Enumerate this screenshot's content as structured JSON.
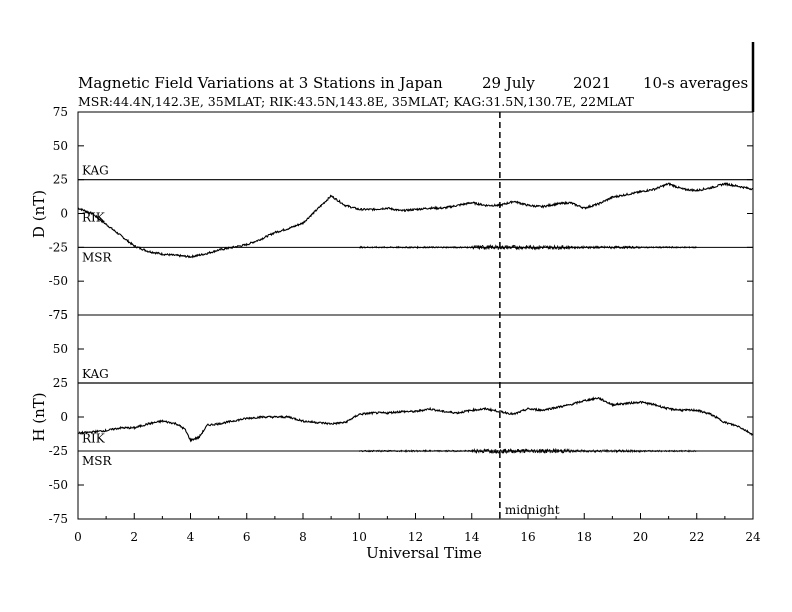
{
  "header": {
    "title": "Magnetic Field Variations at 3 Stations in Japan",
    "date": "29 July",
    "year": "2021",
    "averaging": "10-s averages",
    "stations_line": "MSR:44.4N,142.3E, 35MLAT;  RIK:43.5N,143.8E, 35MLAT;  KAG:31.5N,130.7E, 22MLAT"
  },
  "chart_data": {
    "type": "line",
    "xlabel": "Universal Time",
    "xlim": [
      0,
      24
    ],
    "xticks": [
      0,
      2,
      4,
      6,
      8,
      10,
      12,
      14,
      16,
      18,
      20,
      22,
      24
    ],
    "ylim": [
      -75,
      75
    ],
    "yticks": [
      75,
      50,
      25,
      0,
      -25,
      -50,
      -75
    ],
    "grid": false,
    "annotation": {
      "x": 15,
      "label": "midnight",
      "style": "dashed"
    },
    "panels": [
      {
        "ylabel": "D (nT)",
        "baselines": [
          {
            "label": "KAG",
            "y": 25
          },
          {
            "label": "RIK",
            "y": 0
          },
          {
            "label": "MSR",
            "y": -25
          }
        ],
        "series": [
          {
            "name": "RIK",
            "x": [
              0,
              0.5,
              1,
              1.5,
              2,
              2.5,
              3,
              3.5,
              4,
              4.5,
              5,
              5.5,
              6,
              6.5,
              7,
              7.5,
              8,
              8.5,
              9,
              9.5,
              10,
              10.5,
              11,
              11.5,
              12,
              12.5,
              13,
              13.5,
              14,
              14.5,
              15,
              15.5,
              16,
              16.5,
              17,
              17.5,
              18,
              18.5,
              19,
              19.5,
              20,
              20.5,
              21,
              21.5,
              22,
              22.5,
              23,
              23.5,
              24
            ],
            "values": [
              4,
              0,
              -8,
              -16,
              -24,
              -28,
              -30,
              -31,
              -32,
              -30,
              -27,
              -25,
              -23,
              -19,
              -14,
              -11,
              -7,
              3,
              13,
              6,
              3,
              3,
              4,
              2,
              3,
              4,
              4,
              6,
              8,
              6,
              6,
              9,
              6,
              5,
              7,
              8,
              4,
              7,
              12,
              14,
              16,
              18,
              22,
              18,
              17,
              19,
              22,
              20,
              18
            ]
          },
          {
            "name": "MSR",
            "x": [
              10,
              22
            ],
            "values": [
              -25,
              -25
            ],
            "note": "flat trace with short-period fluctuations"
          },
          {
            "name": "KAG",
            "x": [
              0,
              24
            ],
            "values": [
              25,
              25
            ]
          }
        ]
      },
      {
        "ylabel": "H (nT)",
        "baselines": [
          {
            "label": "KAG",
            "y": 25
          },
          {
            "label": "RIK",
            "y": -13
          },
          {
            "label": "MSR",
            "y": -25
          }
        ],
        "series": [
          {
            "name": "RIK",
            "x": [
              0,
              0.5,
              1,
              1.5,
              2,
              2.5,
              3,
              3.5,
              3.8,
              4,
              4.3,
              4.6,
              5,
              5.5,
              6,
              6.5,
              7,
              7.5,
              8,
              8.5,
              9,
              9.5,
              10,
              10.5,
              11,
              11.5,
              12,
              12.5,
              13,
              13.5,
              14,
              14.5,
              15,
              15.5,
              16,
              16.5,
              17,
              17.5,
              18,
              18.5,
              19,
              19.5,
              20,
              20.5,
              21,
              21.5,
              22,
              22.5,
              23,
              23.5,
              24
            ],
            "values": [
              -12,
              -11,
              -10,
              -8,
              -8,
              -5,
              -3,
              -5,
              -9,
              -17,
              -15,
              -6,
              -5,
              -3,
              -1,
              0,
              0,
              0,
              -3,
              -4,
              -5,
              -4,
              2,
              3,
              3,
              4,
              4,
              6,
              4,
              3,
              5,
              6,
              4,
              2,
              6,
              5,
              7,
              9,
              12,
              14,
              9,
              10,
              11,
              9,
              6,
              5,
              5,
              2,
              -4,
              -7,
              -13
            ]
          },
          {
            "name": "MSR",
            "x": [
              10,
              22
            ],
            "values": [
              -25,
              -25
            ],
            "note": "flat trace with short-period fluctuations"
          },
          {
            "name": "KAG",
            "x": [
              0,
              24
            ],
            "values": [
              25,
              25
            ]
          }
        ]
      }
    ]
  }
}
